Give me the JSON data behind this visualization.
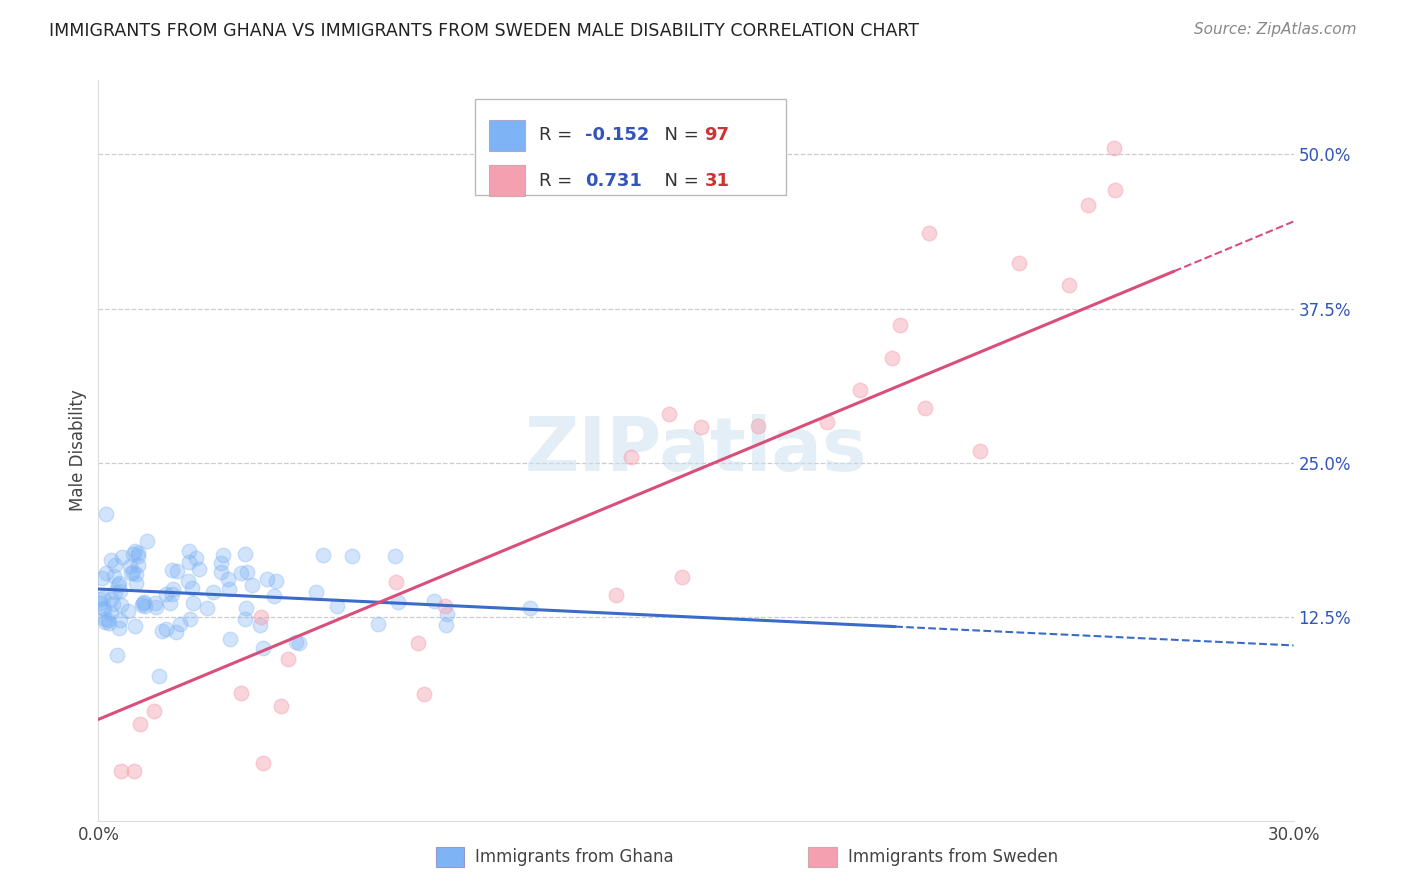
{
  "title": "IMMIGRANTS FROM GHANA VS IMMIGRANTS FROM SWEDEN MALE DISABILITY CORRELATION CHART",
  "source": "Source: ZipAtlas.com",
  "xlim": [
    0.0,
    0.3
  ],
  "ylim": [
    -0.04,
    0.56
  ],
  "ghana_color": "#7eb3f5",
  "sweden_color": "#f5a0b0",
  "ghana_line_color": "#3a6bc9",
  "sweden_line_color": "#d94f7a",
  "ghana_R": -0.152,
  "ghana_N": 97,
  "sweden_R": 0.731,
  "sweden_N": 31,
  "watermark": "ZIPatlas",
  "legend_labels": [
    "Immigrants from Ghana",
    "Immigrants from Sweden"
  ],
  "ylabel": "Male Disability",
  "yticks": [
    0.125,
    0.25,
    0.375,
    0.5
  ],
  "ytick_labels": [
    "12.5%",
    "25.0%",
    "37.5%",
    "50.0%"
  ],
  "xtick_labels": [
    "0.0%",
    "30.0%"
  ],
  "r_text_color": "#3355bb",
  "n_text_color": "#cc3333",
  "label_color": "#444444",
  "source_color": "#888888",
  "watermark_color": "#cce0f0"
}
